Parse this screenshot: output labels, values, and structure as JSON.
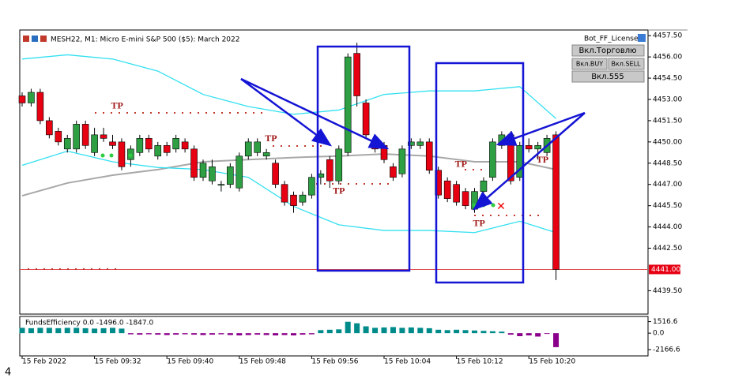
{
  "chart_data": {
    "type": "candlestick",
    "title": "MESH22, M1:  Micro E-mini S&P 500 ($5): March 2022",
    "up_color": "#2ea043",
    "down_color": "#e60012",
    "ohlc": [
      [
        4453.25,
        4453.5,
        4452.5,
        4452.75
      ],
      [
        4452.75,
        4453.75,
        4452.5,
        4453.5
      ],
      [
        4453.5,
        4453.75,
        4451.25,
        4451.5
      ],
      [
        4451.5,
        4451.75,
        4450.25,
        4450.5
      ],
      [
        4450.75,
        4451,
        4449.75,
        4450
      ],
      [
        4449.5,
        4450.5,
        4449.25,
        4450.25
      ],
      [
        4449.5,
        4451.5,
        4449.25,
        4451.25
      ],
      [
        4451.25,
        4451.5,
        4449.5,
        4449.75
      ],
      [
        4449.25,
        4451,
        4449,
        4450.5
      ],
      [
        4450.5,
        4451,
        4450,
        4450.25
      ],
      [
        4450,
        4450.5,
        4449.5,
        4449.75
      ],
      [
        4450,
        4450.25,
        4448,
        4448.25
      ],
      [
        4448.75,
        4449.75,
        4448.25,
        4449.5
      ],
      [
        4449.25,
        4450.5,
        4449,
        4450.25
      ],
      [
        4450.25,
        4450.5,
        4449.25,
        4449.5
      ],
      [
        4449,
        4450,
        4448.75,
        4449.75
      ],
      [
        4449.75,
        4450,
        4449,
        4449.25
      ],
      [
        4449.5,
        4450.5,
        4449.25,
        4450.25
      ],
      [
        4450,
        4450.25,
        4449.25,
        4449.5
      ],
      [
        4449.5,
        4449.75,
        4447.25,
        4447.5
      ],
      [
        4447.5,
        4448.75,
        4447.25,
        4448.5
      ],
      [
        4447.25,
        4448.75,
        4447,
        4448.25
      ],
      [
        4447,
        4447.25,
        4446.5,
        4447
      ],
      [
        4447,
        4448.5,
        4446.75,
        4448.25
      ],
      [
        4446.75,
        4449.25,
        4446.5,
        4449
      ],
      [
        4449,
        4450.25,
        4448.75,
        4450
      ],
      [
        4449.25,
        4450.25,
        4449,
        4450
      ],
      [
        4449,
        4449.5,
        4448.75,
        4449.25
      ],
      [
        4448.5,
        4448.75,
        4446.75,
        4447
      ],
      [
        4447,
        4447.25,
        4445.5,
        4445.75
      ],
      [
        4446.25,
        4446.5,
        4445,
        4445.5
      ],
      [
        4445.75,
        4446.5,
        4445.5,
        4446.25
      ],
      [
        4446.25,
        4447.75,
        4446,
        4447.5
      ],
      [
        4447.5,
        4448,
        4447,
        4447.75
      ],
      [
        4448.75,
        4449,
        4446.75,
        4447.25
      ],
      [
        4447.25,
        4449.75,
        4447,
        4449.5
      ],
      [
        4449.25,
        4456.25,
        4449,
        4456
      ],
      [
        4456.25,
        4457,
        4452.5,
        4453.25
      ],
      [
        4452.75,
        4453,
        4450.25,
        4450.5
      ],
      [
        4450,
        4450.25,
        4449.25,
        4449.5
      ],
      [
        4449.75,
        4450,
        4448.5,
        4448.75
      ],
      [
        4448.25,
        4448.5,
        4447.25,
        4447.5
      ],
      [
        4447.75,
        4449.75,
        4447.5,
        4449.5
      ],
      [
        4449.75,
        4450.25,
        4449.5,
        4450
      ],
      [
        4449.75,
        4450.25,
        4449.5,
        4450
      ],
      [
        4450,
        4450.25,
        4447.75,
        4448
      ],
      [
        4448,
        4448.25,
        4446,
        4446.25
      ],
      [
        4447.25,
        4447.5,
        4445.75,
        4446
      ],
      [
        4447,
        4447.25,
        4445.5,
        4445.75
      ],
      [
        4446.5,
        4446.75,
        4445.25,
        4445.5
      ],
      [
        4445.25,
        4446.75,
        4445,
        4446.5
      ],
      [
        4446.5,
        4447.5,
        4446.25,
        4447.25
      ],
      [
        4447.5,
        4450.25,
        4447.25,
        4450
      ],
      [
        4449.75,
        4450.75,
        4449.5,
        4450.5
      ],
      [
        4450.5,
        4450.75,
        4447,
        4447.25
      ],
      [
        4447.5,
        4450,
        4447.25,
        4449.75
      ],
      [
        4449.75,
        4450.25,
        4449.25,
        4449.5
      ],
      [
        4449.5,
        4450,
        4448.75,
        4449.75
      ],
      [
        4449.25,
        4450.5,
        4449,
        4450.25
      ],
      [
        4450.5,
        4450.75,
        4440.25,
        4441
      ]
    ],
    "bands_x": [
      0,
      5,
      10,
      15,
      20,
      25,
      30,
      35,
      40,
      45,
      50,
      55,
      59
    ],
    "bands": [
      {
        "color": "#33e0f0",
        "values": [
          4455.85,
          4456.15,
          4455.85,
          4455.0,
          4453.35,
          4452.5,
          4451.95,
          4452.25,
          4453.35,
          4453.6,
          4453.6,
          4453.9,
          4451.65
        ]
      },
      {
        "color": "#a8a8a8",
        "values": [
          4446.2,
          4447.1,
          4447.65,
          4448.05,
          4448.6,
          4448.75,
          4448.9,
          4449.0,
          4449.15,
          4449.0,
          4448.6,
          4448.6,
          4448.05
        ]
      },
      {
        "color": "#33e0f0",
        "values": [
          4448.35,
          4449.35,
          4448.6,
          4448.2,
          4448.05,
          4447.5,
          4445.45,
          4444.15,
          4443.75,
          4443.75,
          4443.6,
          4444.4,
          4443.6
        ]
      }
    ],
    "ylim": [
      4437.85,
      4457.9
    ],
    "yticks": [
      {
        "value": 4457.5,
        "label": "4457.50"
      },
      {
        "value": 4456,
        "label": "4456.00"
      },
      {
        "value": 4454.5,
        "label": "4454.50"
      },
      {
        "value": 4453,
        "label": "4453.00"
      },
      {
        "value": 4451.5,
        "label": "4451.50"
      },
      {
        "value": 4450,
        "label": "4450.00"
      },
      {
        "value": 4448.5,
        "label": "4448.50"
      },
      {
        "value": 4447,
        "label": "4447.00"
      },
      {
        "value": 4445.5,
        "label": "4445.50"
      },
      {
        "value": 4444,
        "label": "4444.00"
      },
      {
        "value": 4442.5,
        "label": "4442.50"
      },
      {
        "value": 4439.5,
        "label": "4439.50"
      }
    ],
    "current_price": {
      "value": 4441,
      "label": "4441.00"
    },
    "time_labels": [
      {
        "index": 0,
        "label": "15 Feb 2022"
      },
      {
        "index": 8,
        "label": "15 Feb 09:32"
      },
      {
        "index": 16,
        "label": "15 Feb 09:40"
      },
      {
        "index": 24,
        "label": "15 Feb 09:48"
      },
      {
        "index": 32,
        "label": "15 Feb 09:56"
      },
      {
        "index": 40,
        "label": "15 Feb 10:04"
      },
      {
        "index": 48,
        "label": "15 Feb 10:12"
      },
      {
        "index": 56,
        "label": "15 Feb 10:20"
      }
    ],
    "tp_labels": [
      {
        "text": "TP",
        "x": 10.5,
        "y": 4452.5
      },
      {
        "text": "TP",
        "x": 27.5,
        "y": 4450.2
      },
      {
        "text": "TP",
        "x": 35,
        "y": 4446.5
      },
      {
        "text": "TP",
        "x": 48.5,
        "y": 4448.4
      },
      {
        "text": "TP",
        "x": 50.5,
        "y": 4444.2
      },
      {
        "text": "TP",
        "x": 57.5,
        "y": 4448.7
      }
    ],
    "indicator": {
      "title": "FundsEfficiency 0.0 -1496.0 -1847.0",
      "pos_color": "#008b8b",
      "neg_color": "#8b008b",
      "values": [
        700,
        650,
        700,
        700,
        650,
        700,
        700,
        650,
        600,
        650,
        700,
        600,
        -150,
        -200,
        -150,
        -200,
        -250,
        -200,
        -150,
        -200,
        -250,
        -200,
        -150,
        -250,
        -300,
        -250,
        -200,
        -250,
        -300,
        -250,
        -300,
        -200,
        -150,
        400,
        450,
        500,
        1500,
        1300,
        900,
        700,
        750,
        800,
        700,
        750,
        700,
        650,
        450,
        400,
        450,
        400,
        350,
        300,
        250,
        200,
        -200,
        -400,
        -300,
        -450,
        -100,
        -1847
      ],
      "ylim": [
        -3000,
        2200
      ],
      "yticks": [
        {
          "value": 1516.6,
          "label": "1516.6"
        },
        {
          "value": 0,
          "label": "0.0"
        },
        {
          "value": -2166.6,
          "label": "-2166.6"
        }
      ]
    },
    "panel": {
      "license": "Bot_FF_License",
      "buttons": [
        "Вкл.Торговлю",
        "Вкл.BUY",
        "Вкл.SELL",
        "Вкл.555"
      ]
    },
    "footnote": "4"
  }
}
